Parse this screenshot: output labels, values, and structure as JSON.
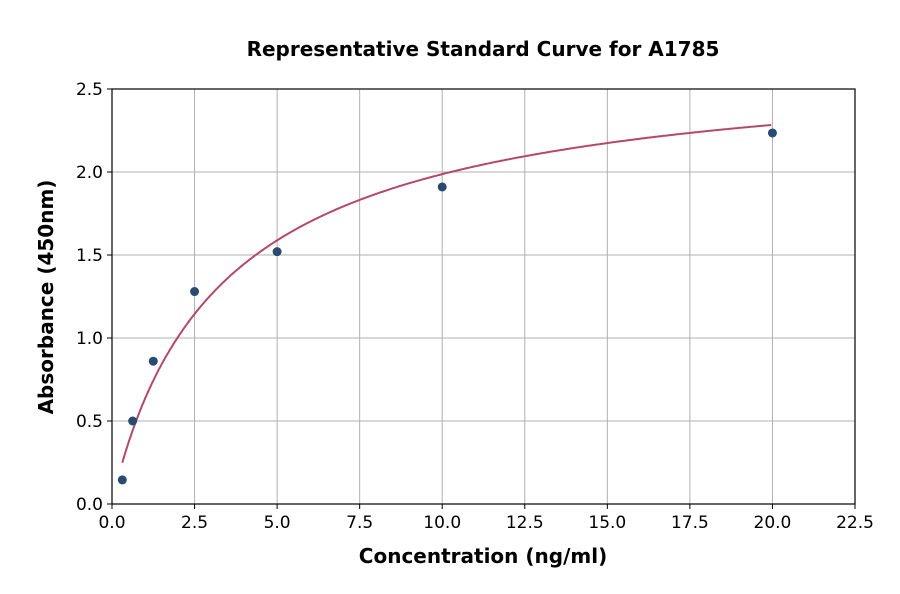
{
  "chart_data": {
    "type": "scatter",
    "title": "Representative Standard Curve for A1785",
    "xlabel": "Concentration (ng/ml)",
    "ylabel": "Absorbance (450nm)",
    "xlim": [
      0,
      22.5
    ],
    "ylim": [
      0,
      2.5
    ],
    "xticks": [
      "0.0",
      "2.5",
      "5.0",
      "7.5",
      "10.0",
      "12.5",
      "15.0",
      "17.5",
      "20.0",
      "22.5"
    ],
    "yticks": [
      "0.0",
      "0.5",
      "1.0",
      "1.5",
      "2.0",
      "2.5"
    ],
    "grid": true,
    "points": [
      {
        "x": 0.3125,
        "y": 0.145
      },
      {
        "x": 0.625,
        "y": 0.5
      },
      {
        "x": 1.25,
        "y": 0.86
      },
      {
        "x": 2.5,
        "y": 1.28
      },
      {
        "x": 5,
        "y": 1.52
      },
      {
        "x": 10,
        "y": 1.91
      },
      {
        "x": 20,
        "y": 2.235
      }
    ],
    "fit_curve": "4-parameter logistic",
    "colors": {
      "points": "#2b4a6f",
      "curve": "#b5476b",
      "grid": "#b0b0b0"
    }
  }
}
